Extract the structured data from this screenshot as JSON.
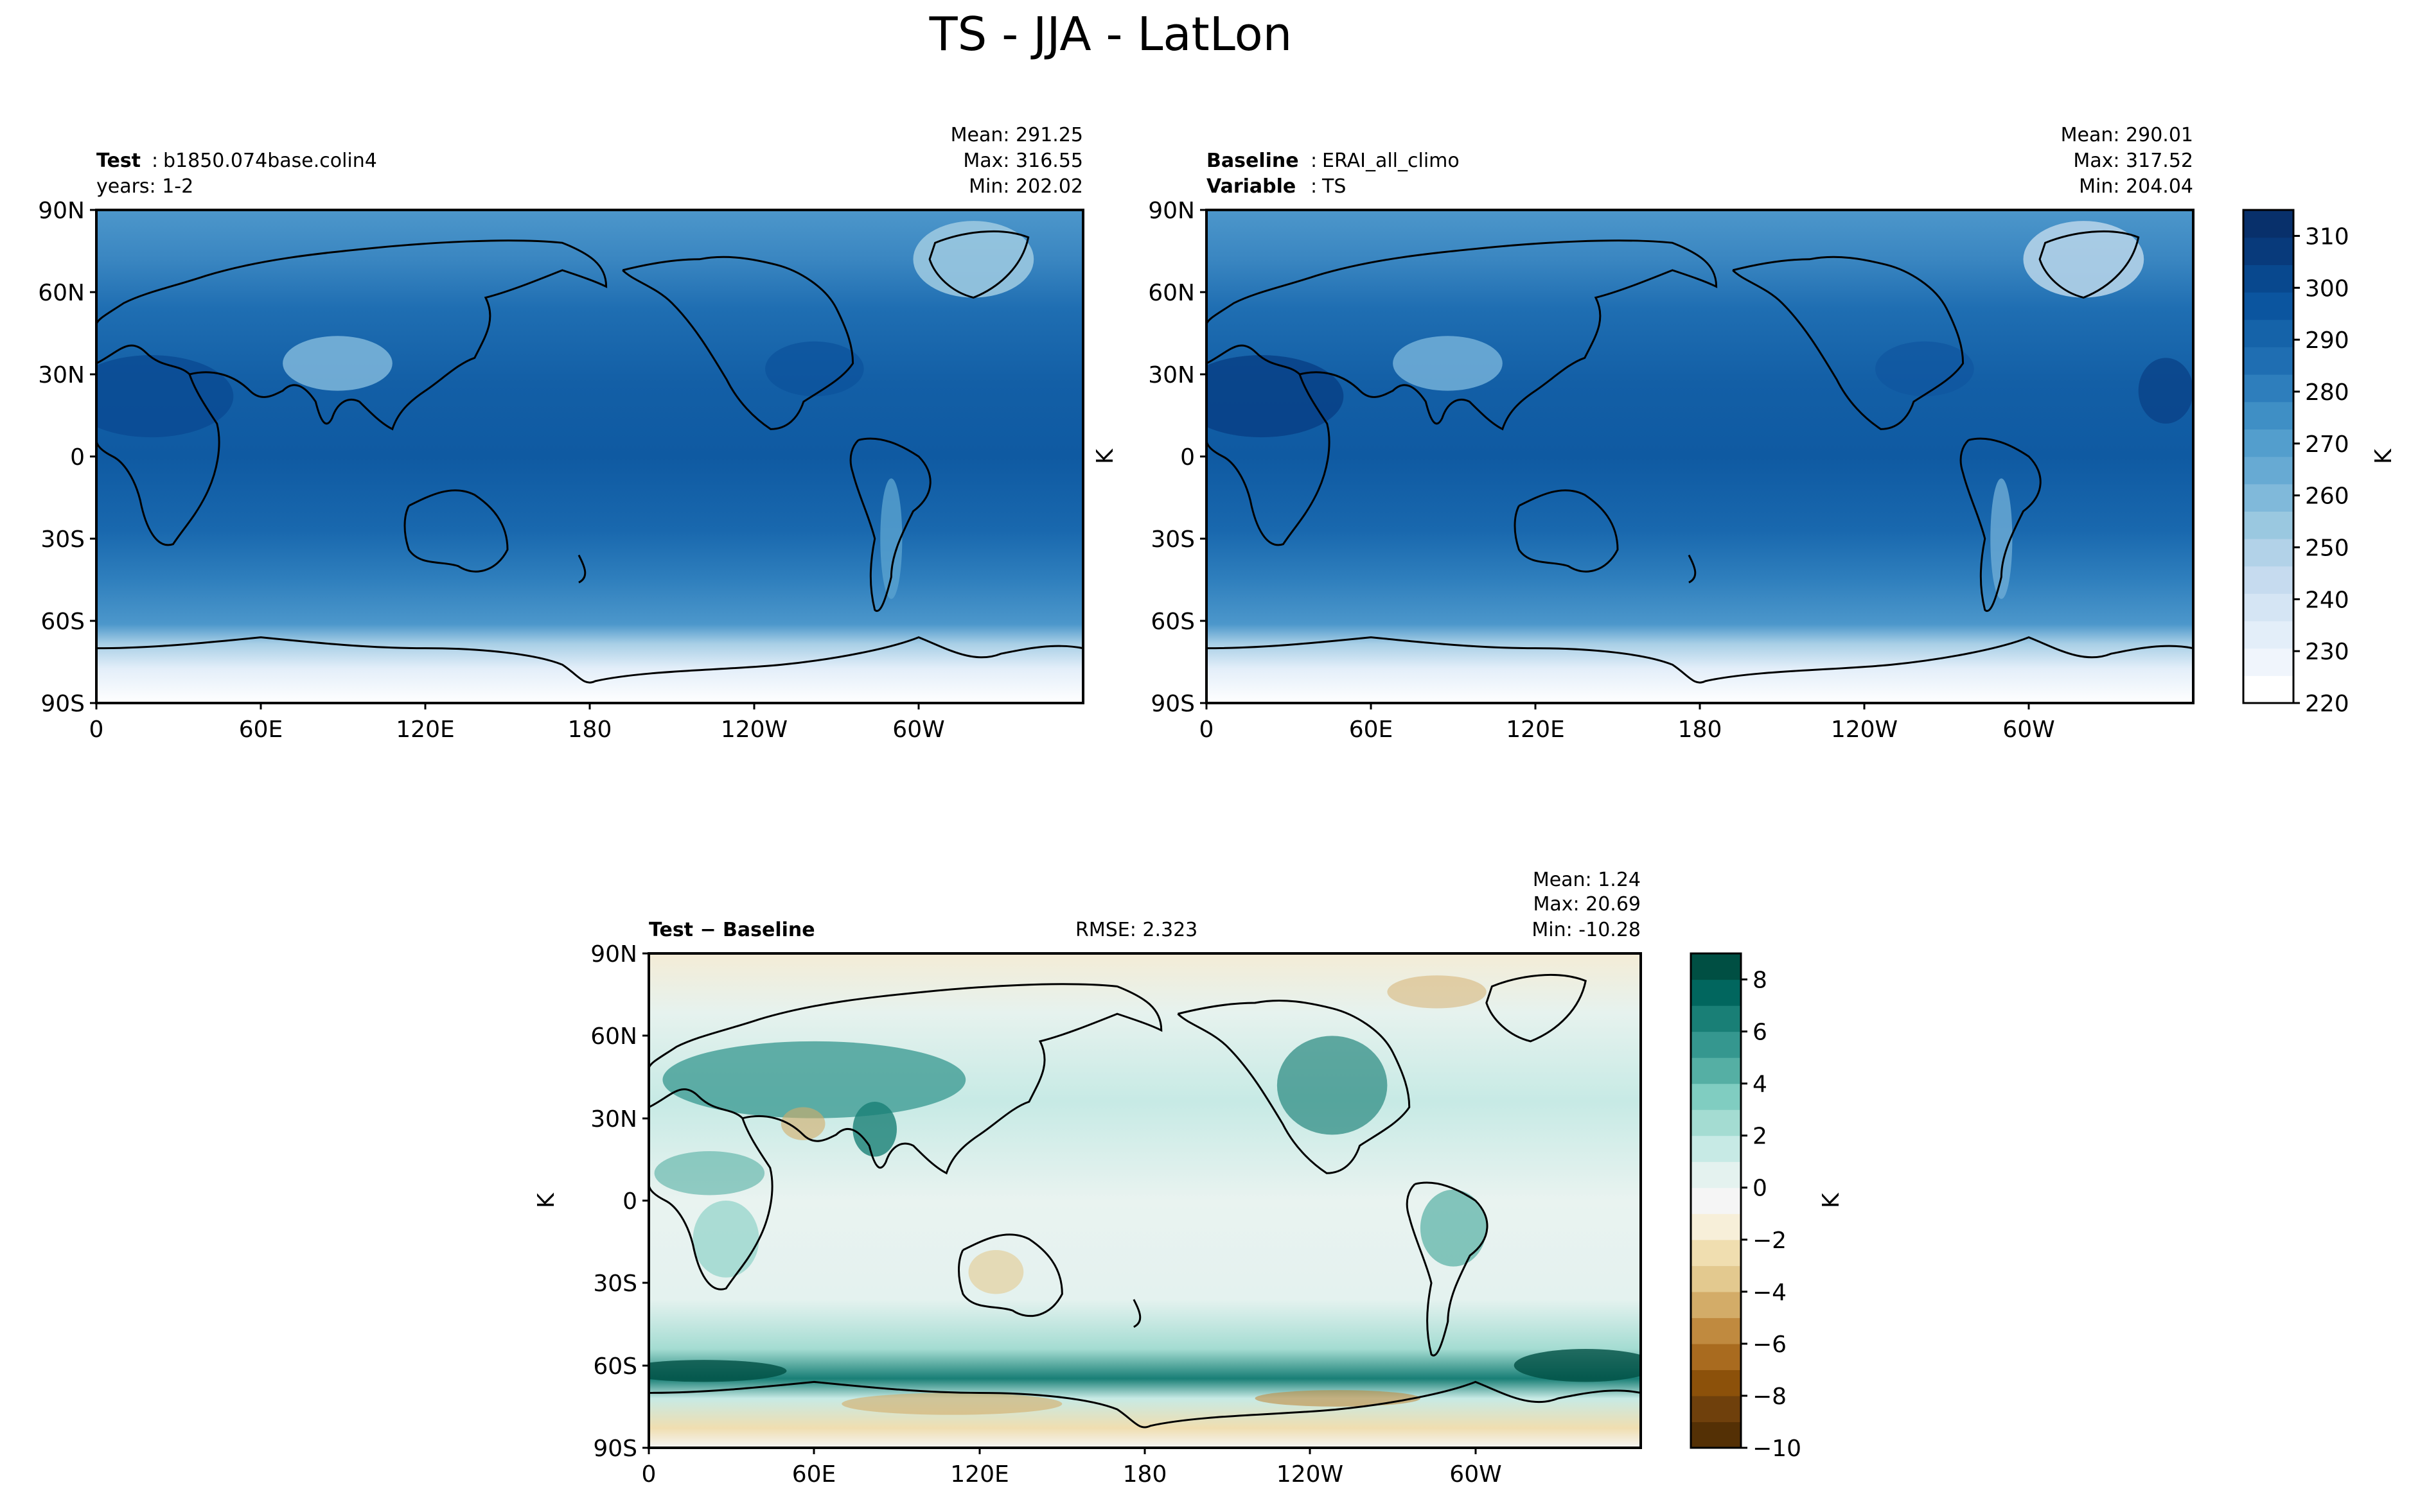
{
  "title": "TS - JJA - LatLon",
  "panels": {
    "test": {
      "label_bold": "Test",
      "label_value": "b1850.074base.colin4",
      "line2_text": "years: 1-2",
      "stats": {
        "mean": "Mean: 291.25",
        "max": "Max: 316.55",
        "min": "Min: 202.02"
      }
    },
    "baseline": {
      "label_bold": "Baseline",
      "label_value": "ERAI_all_climo",
      "line2_bold": "Variable",
      "line2_value": "TS",
      "stats": {
        "mean": "Mean: 290.01",
        "max": "Max: 317.52",
        "min": "Min: 204.04"
      },
      "ylabel": "K"
    },
    "diff": {
      "label": "Test − Baseline",
      "rmse": "RMSE: 2.323",
      "stats": {
        "mean": "Mean:  1.24",
        "max": "Max: 20.69",
        "min": "Min: -10.28"
      },
      "ylabel": "K"
    }
  },
  "axes": {
    "lat_ticks": [
      "90N",
      "60N",
      "30N",
      "0",
      "30S",
      "60S",
      "90S"
    ],
    "lon_ticks": [
      "0",
      "60E",
      "120E",
      "180",
      "120W",
      "60W"
    ]
  },
  "colorbars": {
    "top": {
      "label": "K",
      "range": [
        220,
        315
      ],
      "ticks": [
        "310",
        "300",
        "290",
        "280",
        "270",
        "260",
        "250",
        "240",
        "230",
        "220"
      ],
      "colormap": "Blues",
      "colors": [
        "#ffffff",
        "#f0f5fc",
        "#e3eef9",
        "#d5e5f4",
        "#c6dbef",
        "#b2d2e8",
        "#9ac8e0",
        "#80b9da",
        "#67aad3",
        "#539ecd",
        "#3f8fc5",
        "#2e7ebc",
        "#1f6eb2",
        "#1563a9",
        "#0b559f",
        "#08488e",
        "#083a7b",
        "#08306b"
      ]
    },
    "diff": {
      "label": "K",
      "range": [
        -10,
        9
      ],
      "ticks": [
        "8",
        "6",
        "4",
        "2",
        "0",
        "−2",
        "−4",
        "−6",
        "−8",
        "−10"
      ],
      "colormap": "BrBG",
      "colors": [
        "#543005",
        "#6f400c",
        "#8c510a",
        "#a96b1f",
        "#c08a3f",
        "#d3ac68",
        "#e3c98f",
        "#f0deb0",
        "#f7efd9",
        "#f5f5f5",
        "#e4f2ef",
        "#c7eae5",
        "#a4dcd2",
        "#80cdc1",
        "#55afa4",
        "#35978f",
        "#197f76",
        "#01665e",
        "#004f43"
      ]
    }
  },
  "chart_data": [
    {
      "type": "heatmap",
      "panel": "test",
      "variable": "TS",
      "units": "K",
      "season": "JJA",
      "mean": 291.25,
      "max": 316.55,
      "min": 202.02,
      "color_range": [
        220,
        315
      ]
    },
    {
      "type": "heatmap",
      "panel": "baseline",
      "variable": "TS",
      "units": "K",
      "season": "JJA",
      "mean": 290.01,
      "max": 317.52,
      "min": 204.04,
      "color_range": [
        220,
        315
      ]
    },
    {
      "type": "heatmap",
      "panel": "difference",
      "variable": "TS",
      "units": "K",
      "season": "JJA",
      "mean": 1.24,
      "max": 20.69,
      "min": -10.28,
      "rmse": 2.323,
      "color_range": [
        -10,
        9
      ]
    }
  ]
}
